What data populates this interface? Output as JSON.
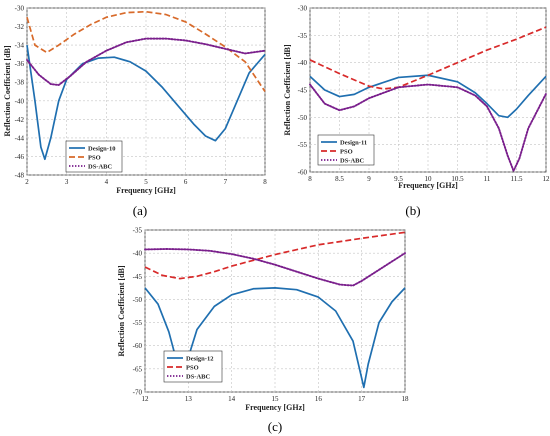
{
  "chart_data": [
    {
      "type": "line",
      "panel_label": "(a)",
      "xlabel": "Frequency [GHz]",
      "ylabel": "Reflection Coefficient [dB]",
      "xlim": [
        2,
        8
      ],
      "ylim": [
        -48,
        -30
      ],
      "xticks": [
        2,
        3,
        4,
        5,
        6,
        7,
        8
      ],
      "yticks": [
        -48,
        -46,
        -44,
        -42,
        -40,
        -38,
        -36,
        -34,
        -32,
        -30
      ],
      "grid": true,
      "legend_position": "bottom-left",
      "series": [
        {
          "name": "Design-10",
          "color": "#1f6fb0",
          "style": "solid",
          "x": [
            2,
            2.2,
            2.35,
            2.45,
            2.6,
            2.8,
            3,
            3.4,
            3.8,
            4.2,
            4.6,
            5,
            5.4,
            5.8,
            6.2,
            6.5,
            6.75,
            7,
            7.3,
            7.6,
            8
          ],
          "y": [
            -34,
            -40,
            -45,
            -46.3,
            -44,
            -40,
            -37.7,
            -36,
            -35.4,
            -35.3,
            -35.8,
            -36.8,
            -38.5,
            -40.5,
            -42.5,
            -43.8,
            -44.3,
            -43,
            -40,
            -37,
            -35
          ]
        },
        {
          "name": "PSO",
          "color": "#d86a2a",
          "style": "dashed",
          "x": [
            2,
            2.2,
            2.5,
            2.8,
            3.2,
            3.6,
            4,
            4.5,
            5,
            5.5,
            6,
            6.5,
            7,
            7.5,
            8
          ],
          "y": [
            -31,
            -34,
            -34.8,
            -34,
            -32.8,
            -31.8,
            -31,
            -30.5,
            -30.4,
            -30.7,
            -31.5,
            -32.8,
            -34.2,
            -35.8,
            -39
          ]
        },
        {
          "name": "DS-ABC",
          "color": "#7a1f8c",
          "style": "dotted",
          "x": [
            2,
            2.3,
            2.6,
            2.8,
            3.1,
            3.5,
            4,
            4.5,
            5,
            5.5,
            6,
            6.5,
            7,
            7.5,
            8
          ],
          "y": [
            -35.6,
            -37.2,
            -38.2,
            -38.3,
            -37.3,
            -35.8,
            -34.6,
            -33.7,
            -33.3,
            -33.3,
            -33.5,
            -33.9,
            -34.4,
            -34.9,
            -34.6
          ]
        }
      ]
    },
    {
      "type": "line",
      "panel_label": "(b)",
      "xlabel": "Frequency [GHz]",
      "ylabel": "Reflection Coefficient [dB]",
      "xlim": [
        8,
        12
      ],
      "ylim": [
        -60,
        -30
      ],
      "xticks": [
        8,
        8.5,
        9,
        9.5,
        10,
        10.5,
        11,
        11.5,
        12
      ],
      "xtick_labels": [
        "8",
        "8.5",
        "9",
        "9.5",
        "10",
        "10.5",
        "11",
        "11.5",
        "12"
      ],
      "yticks": [
        -60,
        -55,
        -50,
        -45,
        -40,
        -35,
        -30
      ],
      "grid": true,
      "legend_position": "bottom-left",
      "series": [
        {
          "name": "Design-11",
          "color": "#1f6fb0",
          "style": "solid",
          "x": [
            8,
            8.25,
            8.5,
            8.75,
            9,
            9.5,
            10,
            10.5,
            10.8,
            11,
            11.2,
            11.35,
            11.5,
            11.7,
            12
          ],
          "y": [
            -42.5,
            -45,
            -46.2,
            -45.8,
            -44.5,
            -42.7,
            -42.3,
            -43.5,
            -45.5,
            -47.5,
            -49.7,
            -50,
            -48.5,
            -46,
            -42.5
          ]
        },
        {
          "name": "PSO",
          "color": "#d82a2a",
          "style": "dashed",
          "x": [
            8,
            8.5,
            9,
            9.25,
            9.5,
            10,
            10.5,
            11,
            11.5,
            12
          ],
          "y": [
            -39.5,
            -42,
            -44.3,
            -44.8,
            -44.5,
            -42.3,
            -40,
            -37.7,
            -35.7,
            -33.5
          ]
        },
        {
          "name": "DS-ABC",
          "color": "#7a1f8c",
          "style": "dotted",
          "x": [
            8,
            8.25,
            8.5,
            8.75,
            9,
            9.5,
            10,
            10.5,
            10.8,
            11,
            11.2,
            11.35,
            11.45,
            11.55,
            11.7,
            12
          ],
          "y": [
            -44,
            -47.5,
            -48.7,
            -48,
            -46.5,
            -44.5,
            -44,
            -44.5,
            -46,
            -48,
            -52,
            -57,
            -59.8,
            -57.5,
            -52,
            -45.7
          ]
        }
      ]
    },
    {
      "type": "line",
      "panel_label": "(c)",
      "xlabel": "Frequency [GHz]",
      "ylabel": "Reflection Coefficient [dB]",
      "xlim": [
        12,
        18
      ],
      "ylim": [
        -70,
        -35
      ],
      "xticks": [
        12,
        13,
        14,
        15,
        16,
        17,
        18
      ],
      "yticks": [
        -70,
        -65,
        -60,
        -55,
        -50,
        -45,
        -40,
        -35
      ],
      "grid": true,
      "legend_position": "bottom-left",
      "series": [
        {
          "name": "Design-12",
          "color": "#1f6fb0",
          "style": "solid",
          "x": [
            12,
            12.3,
            12.55,
            12.75,
            12.85,
            12.95,
            13.2,
            13.6,
            14,
            14.5,
            15,
            15.5,
            16,
            16.4,
            16.8,
            16.95,
            17.05,
            17.15,
            17.4,
            17.7,
            18
          ],
          "y": [
            -47.5,
            -51,
            -57,
            -64,
            -67.5,
            -64,
            -56.5,
            -51.5,
            -49,
            -47.7,
            -47.5,
            -47.9,
            -49.5,
            -52.5,
            -59,
            -65,
            -69,
            -64,
            -55,
            -50.5,
            -47.5
          ]
        },
        {
          "name": "PSO",
          "color": "#d82a2a",
          "style": "dashed",
          "x": [
            12,
            12.4,
            12.8,
            13.2,
            13.6,
            14,
            15,
            16,
            17,
            18
          ],
          "y": [
            -43,
            -44.8,
            -45.5,
            -45,
            -44,
            -42.8,
            -40.3,
            -38.2,
            -36.8,
            -35.5
          ]
        },
        {
          "name": "DS-ABC",
          "color": "#7a1f8c",
          "style": "dotted",
          "x": [
            12,
            12.5,
            13,
            13.5,
            14,
            14.5,
            15,
            15.5,
            16,
            16.5,
            16.8,
            17,
            17.5,
            18
          ],
          "y": [
            -39.2,
            -39.1,
            -39.2,
            -39.5,
            -40.2,
            -41.2,
            -42.5,
            -44,
            -45.5,
            -46.8,
            -47,
            -46,
            -43,
            -40
          ]
        }
      ]
    }
  ]
}
